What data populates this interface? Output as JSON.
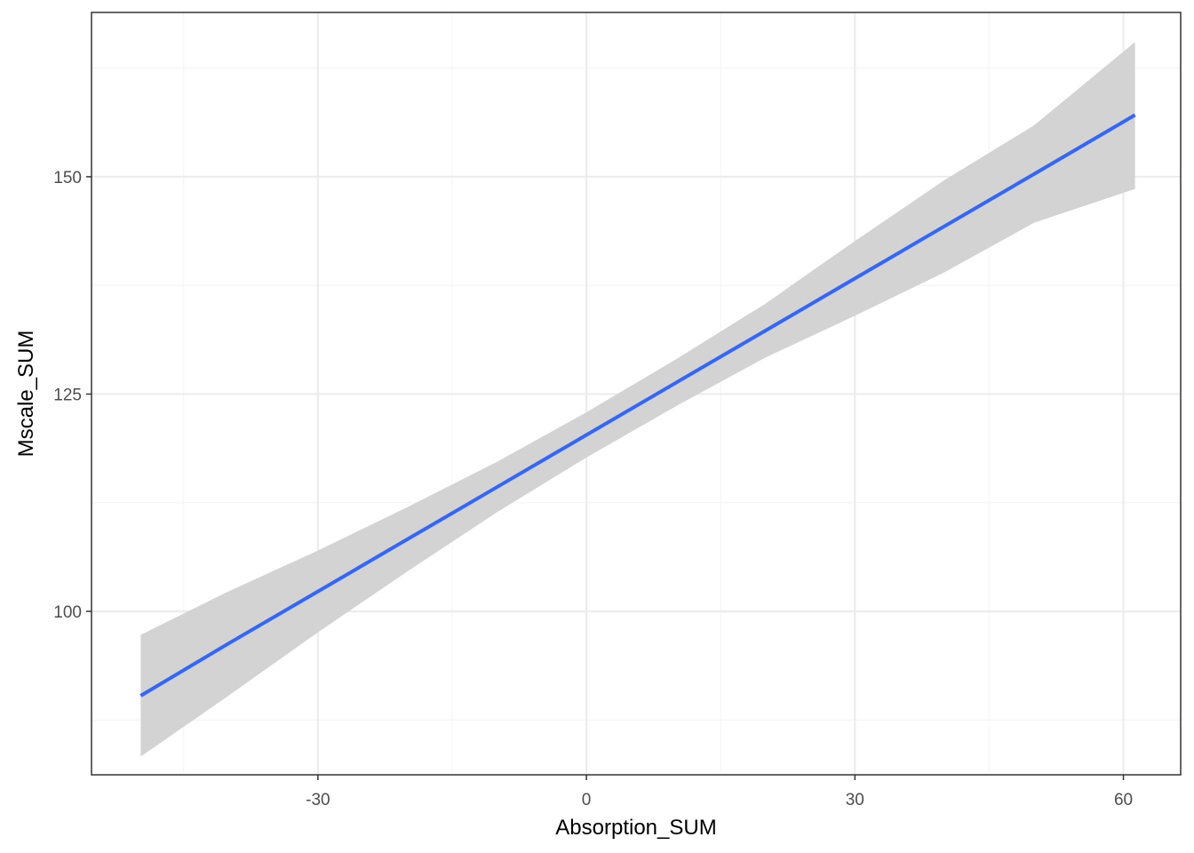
{
  "chart_data": {
    "type": "line",
    "title": "",
    "xlabel": "Absorption_SUM",
    "ylabel": "Mscale_SUM",
    "xlim": [
      -55.3,
      66.4
    ],
    "ylim": [
      81.2,
      168.9
    ],
    "x_ticks": [
      -30,
      0,
      30,
      60
    ],
    "x_tick_labels": [
      "-30",
      "0",
      "30",
      "60"
    ],
    "x_minor_ticks": [
      -45,
      -15,
      15,
      45
    ],
    "y_ticks": [
      100,
      125,
      150
    ],
    "y_tick_labels": [
      "100",
      "125",
      "150"
    ],
    "y_minor_ticks": [
      87.5,
      112.5,
      137.5,
      162.5
    ],
    "grid": true,
    "legend": "none",
    "series": [
      {
        "x": [
          -49.8,
          -40,
          -30,
          -20,
          -10,
          0,
          10,
          20,
          30,
          40,
          50,
          61.3
        ],
        "y": [
          90.3,
          96.3,
          102.3,
          108.3,
          114.3,
          120.3,
          126.3,
          132.3,
          138.3,
          144.3,
          150.3,
          157.1
        ],
        "ci_lower": [
          83.3,
          90.3,
          97.6,
          104.6,
          111.4,
          117.7,
          123.6,
          129.2,
          134.0,
          139.0,
          144.7,
          148.6
        ],
        "ci_upper": [
          97.3,
          102.3,
          107.0,
          112.0,
          117.2,
          122.9,
          129.0,
          135.4,
          142.6,
          149.6,
          155.9,
          165.5
        ]
      }
    ],
    "colors": {
      "line": "#3366FF",
      "ribbon": "#d3d3d3",
      "grid_major": "#ebebeb",
      "grid_minor": "#f5f5f5",
      "panel_border": "#333333"
    }
  }
}
